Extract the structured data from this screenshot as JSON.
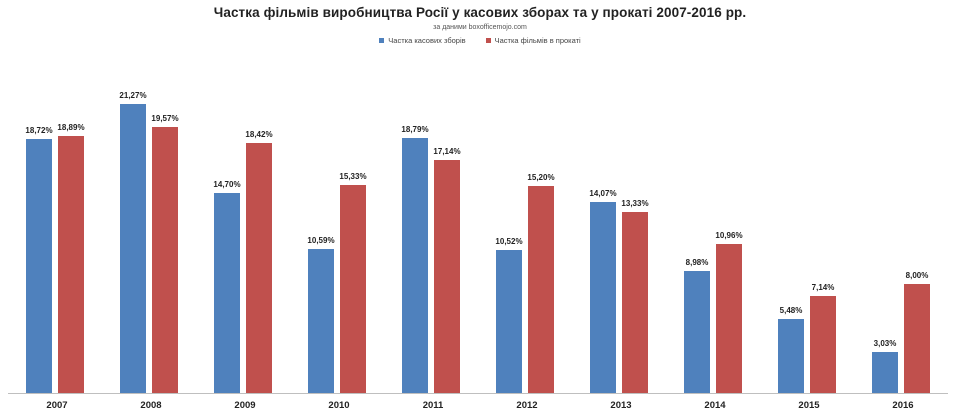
{
  "chart_data": {
    "type": "bar",
    "title": "Частка фільмів виробництва Росії у касових зборах та у прокаті 2007-2016 рр.",
    "subtitle": "за даними boxofficemojo.com",
    "xlabel": "",
    "ylabel": "",
    "ylim": [
      0,
      24.5
    ],
    "grid": false,
    "legend_position": "top",
    "categories": [
      "2007",
      "2008",
      "2009",
      "2010",
      "2011",
      "2012",
      "2013",
      "2014",
      "2015",
      "2016"
    ],
    "series": [
      {
        "name": "Частка касових зборів",
        "color": "#4f81bd",
        "values": [
          18.72,
          21.27,
          14.7,
          10.59,
          18.79,
          10.52,
          14.07,
          8.98,
          5.48,
          3.03
        ],
        "labels": [
          "18,72%",
          "21,27%",
          "14,70%",
          "10,59%",
          "18,79%",
          "10,52%",
          "14,07%",
          "8,98%",
          "5,48%",
          "3,03%"
        ]
      },
      {
        "name": "Частка фільмів в прокаті",
        "color": "#c0504d",
        "values": [
          18.89,
          19.57,
          18.42,
          15.33,
          17.14,
          15.2,
          13.33,
          10.96,
          7.14,
          8.0
        ],
        "labels": [
          "18,89%",
          "19,57%",
          "18,42%",
          "15,33%",
          "17,14%",
          "15,20%",
          "13,33%",
          "10,96%",
          "7,14%",
          "8,00%"
        ]
      }
    ]
  }
}
